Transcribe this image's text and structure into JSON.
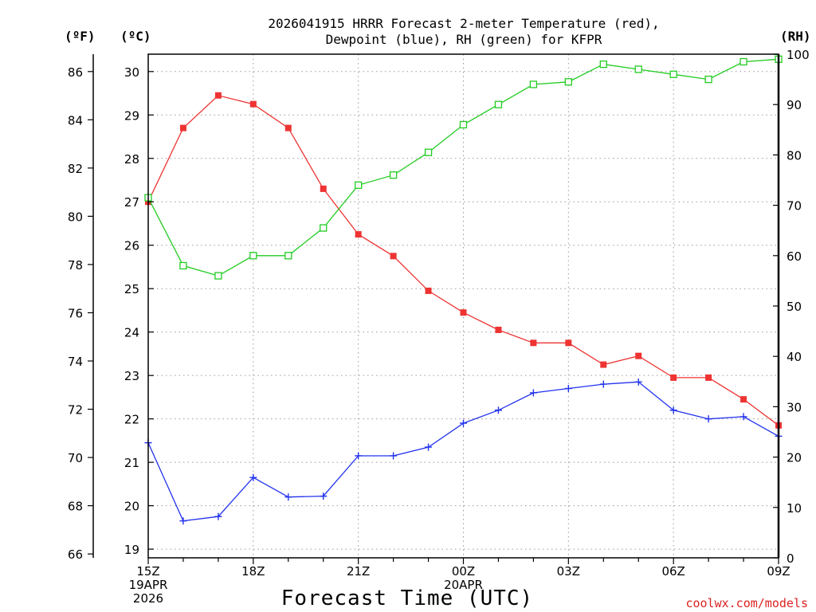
{
  "chart_data": {
    "type": "line",
    "title": [
      "2026041915 HRRR Forecast 2-meter Temperature (red),",
      "Dewpoint (blue), RH (green) for KFPR"
    ],
    "xlabel": "Forecast Time (UTC)",
    "watermark": "coolwx.com/models",
    "units": {
      "fahrenheit": "(ºF)",
      "celsius": "(ºC)",
      "rh": "(RH)"
    },
    "x_hours": [
      0,
      1,
      2,
      3,
      4,
      5,
      6,
      7,
      8,
      9,
      10,
      11,
      12,
      13,
      14,
      15,
      16,
      17,
      18
    ],
    "x_ticks": [
      {
        "hour": 0,
        "lines": [
          "15Z",
          "19APR",
          "2026"
        ]
      },
      {
        "hour": 3,
        "lines": [
          "18Z"
        ]
      },
      {
        "hour": 6,
        "lines": [
          "21Z"
        ]
      },
      {
        "hour": 9,
        "lines": [
          "00Z",
          "20APR"
        ]
      },
      {
        "hour": 12,
        "lines": [
          "03Z"
        ]
      },
      {
        "hour": 15,
        "lines": [
          "06Z"
        ]
      },
      {
        "hour": 18,
        "lines": [
          "09Z"
        ]
      }
    ],
    "celsius_axis": {
      "ylim": [
        18.8,
        30.4
      ],
      "ticks": [
        "19",
        "20",
        "21",
        "22",
        "23",
        "24",
        "25",
        "26",
        "27",
        "28",
        "29",
        "30"
      ]
    },
    "fahrenheit_axis": {
      "ticks": [
        "66",
        "68",
        "70",
        "72",
        "74",
        "76",
        "78",
        "80",
        "82",
        "84",
        "86"
      ]
    },
    "rh_axis": {
      "ylim": [
        0,
        100
      ],
      "ticks": [
        "0",
        "10",
        "20",
        "30",
        "40",
        "50",
        "60",
        "70",
        "80",
        "90",
        "100"
      ]
    },
    "series": [
      {
        "name": "2-meter Temperature",
        "axis": "celsius",
        "color": "#ee3333",
        "marker": "filled-square",
        "values": [
          27.0,
          28.7,
          29.45,
          29.25,
          28.7,
          27.3,
          26.25,
          25.75,
          24.95,
          24.45,
          24.05,
          23.75,
          23.75,
          23.25,
          23.45,
          22.95,
          22.95,
          22.45,
          21.85
        ]
      },
      {
        "name": "Dewpoint",
        "axis": "celsius",
        "color": "#2233ee",
        "marker": "plus",
        "values": [
          21.45,
          19.65,
          19.75,
          20.65,
          20.2,
          20.22,
          21.15,
          21.15,
          21.35,
          21.9,
          22.2,
          22.6,
          22.7,
          22.8,
          22.85,
          22.2,
          22.0,
          22.05,
          21.6
        ]
      },
      {
        "name": "RH",
        "axis": "rh",
        "color": "#22cc22",
        "marker": "open-square",
        "values": [
          71.5,
          58.0,
          56.0,
          60.0,
          60.0,
          65.5,
          74.0,
          76.0,
          80.5,
          86.0,
          90.0,
          94.0,
          94.5,
          98.0,
          97.0,
          96.0,
          95.0,
          98.5,
          99.0
        ]
      }
    ]
  }
}
